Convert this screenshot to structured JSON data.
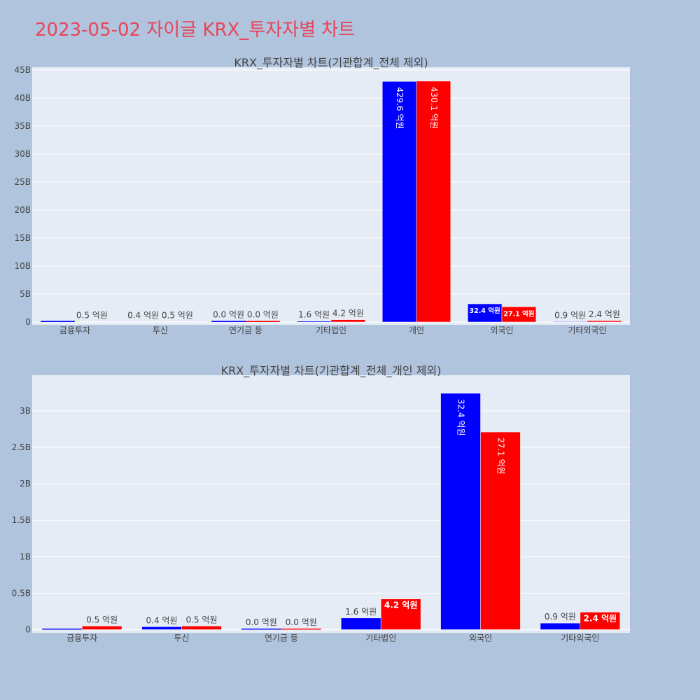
{
  "page": {
    "title": "2023-05-02 자이글 KRX_투자자별 차트"
  },
  "colors": {
    "background": "#b0c4de",
    "plot_bg": "#e5ecf6",
    "buy": "#0000ff",
    "sell": "#ff0000",
    "title": "#e8445a"
  },
  "chart_data": [
    {
      "type": "bar",
      "title": "KRX_투자자별 차트(기관합계_전체 제외)",
      "categories": [
        "금융투자",
        "투신",
        "연기금 등",
        "기타법인",
        "개인",
        "외국인",
        "기타외국인"
      ],
      "ylim": [
        0,
        45000000000
      ],
      "yticks": [
        0,
        5000000000,
        10000000000,
        15000000000,
        20000000000,
        25000000000,
        30000000000,
        35000000000,
        40000000000,
        45000000000
      ],
      "ytick_labels": [
        "0",
        "5B",
        "10B",
        "15B",
        "20B",
        "25B",
        "30B",
        "35B",
        "40B",
        "45B"
      ],
      "grid": true,
      "series": [
        {
          "color": "#0000ff",
          "values": [
            0,
            40000000,
            0,
            160000000,
            42960000000,
            3240000000,
            90000000
          ],
          "labels": [
            "",
            "0.4 억원",
            "0.0 억원",
            "1.6 억원",
            "429.6 억원",
            "32.4 억원",
            "0.9 억원"
          ]
        },
        {
          "color": "#ff0000",
          "values": [
            50000000,
            50000000,
            0,
            420000000,
            43010000000,
            2710000000,
            240000000
          ],
          "labels": [
            "0.5 억원",
            "0.5 억원",
            "0.0 억원",
            "4.2 억원",
            "430.1 억원",
            "27.1 억원",
            "2.4 억원"
          ]
        }
      ]
    },
    {
      "type": "bar",
      "title": "KRX_투자자별 차트(기관합계_전체_개인 제외)",
      "categories": [
        "금융투자",
        "투신",
        "연기금 등",
        "기타법인",
        "외국인",
        "기타외국인"
      ],
      "ylim": [
        0,
        3450000000
      ],
      "yticks": [
        0,
        500000000,
        1000000000,
        1500000000,
        2000000000,
        2500000000,
        3000000000
      ],
      "ytick_labels": [
        "0",
        "0.5B",
        "1B",
        "1.5B",
        "2B",
        "2.5B",
        "3B"
      ],
      "grid": true,
      "series": [
        {
          "color": "#0000ff",
          "values": [
            0,
            40000000,
            0,
            160000000,
            3240000000,
            90000000
          ],
          "labels": [
            "",
            "0.4 억원",
            "0.0 억원",
            "1.6 억원",
            "32.4 억원",
            "0.9 억원"
          ]
        },
        {
          "color": "#ff0000",
          "values": [
            50000000,
            50000000,
            0,
            420000000,
            2710000000,
            240000000
          ],
          "labels": [
            "0.5 억원",
            "0.5 억원",
            "0.0 억원",
            "4.2 억원",
            "27.1 억원",
            "2.4 억원"
          ]
        }
      ]
    }
  ]
}
